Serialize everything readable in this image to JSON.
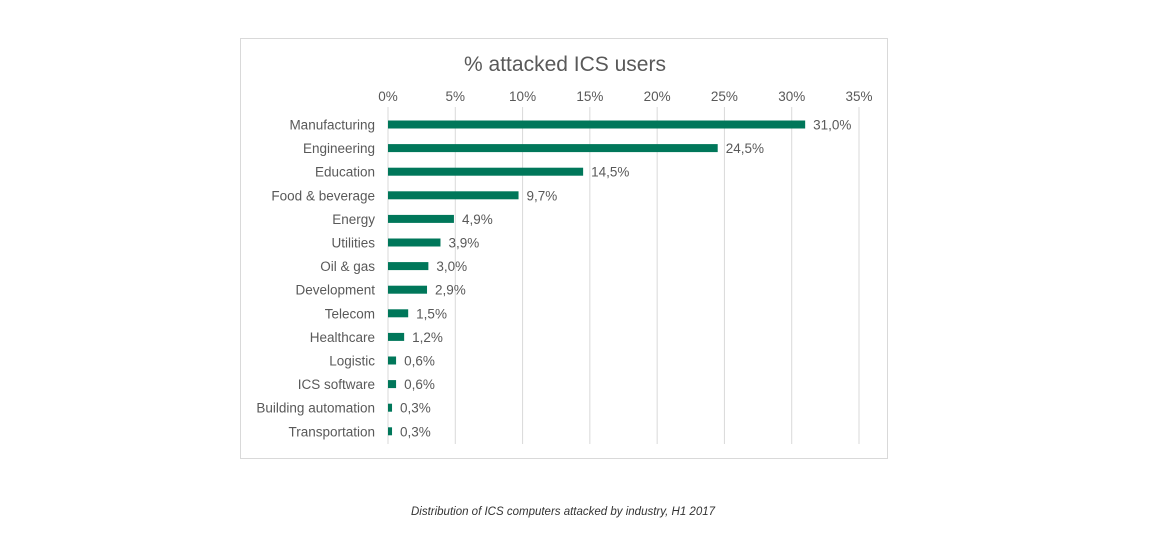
{
  "chart_data": {
    "type": "bar",
    "orientation": "horizontal",
    "title": "% attacked ICS users",
    "xlabel": "",
    "ylabel": "",
    "xlim": [
      0,
      35
    ],
    "x_ticks": [
      "0%",
      "5%",
      "10%",
      "15%",
      "20%",
      "25%",
      "30%",
      "35%"
    ],
    "grid": true,
    "legend": "none",
    "bar_color": "#00775a",
    "categories": [
      "Manufacturing",
      "Engineering",
      "Education",
      "Food & beverage",
      "Energy",
      "Utilities",
      "Oil & gas",
      "Development",
      "Telecom",
      "Healthcare",
      "Logistic",
      "ICS software",
      "Building automation",
      "Transportation"
    ],
    "values": [
      31.0,
      24.5,
      14.5,
      9.7,
      4.9,
      3.9,
      3.0,
      2.9,
      1.5,
      1.2,
      0.6,
      0.6,
      0.3,
      0.3
    ],
    "data_labels": [
      "31,0%",
      "24,5%",
      "14,5%",
      "9,7%",
      "4,9%",
      "3,9%",
      "3,0%",
      "2,9%",
      "1,5%",
      "1,2%",
      "0,6%",
      "0,6%",
      "0,3%",
      "0,3%"
    ]
  },
  "caption": "Distribution of ICS computers attacked by industry, H1 2017"
}
